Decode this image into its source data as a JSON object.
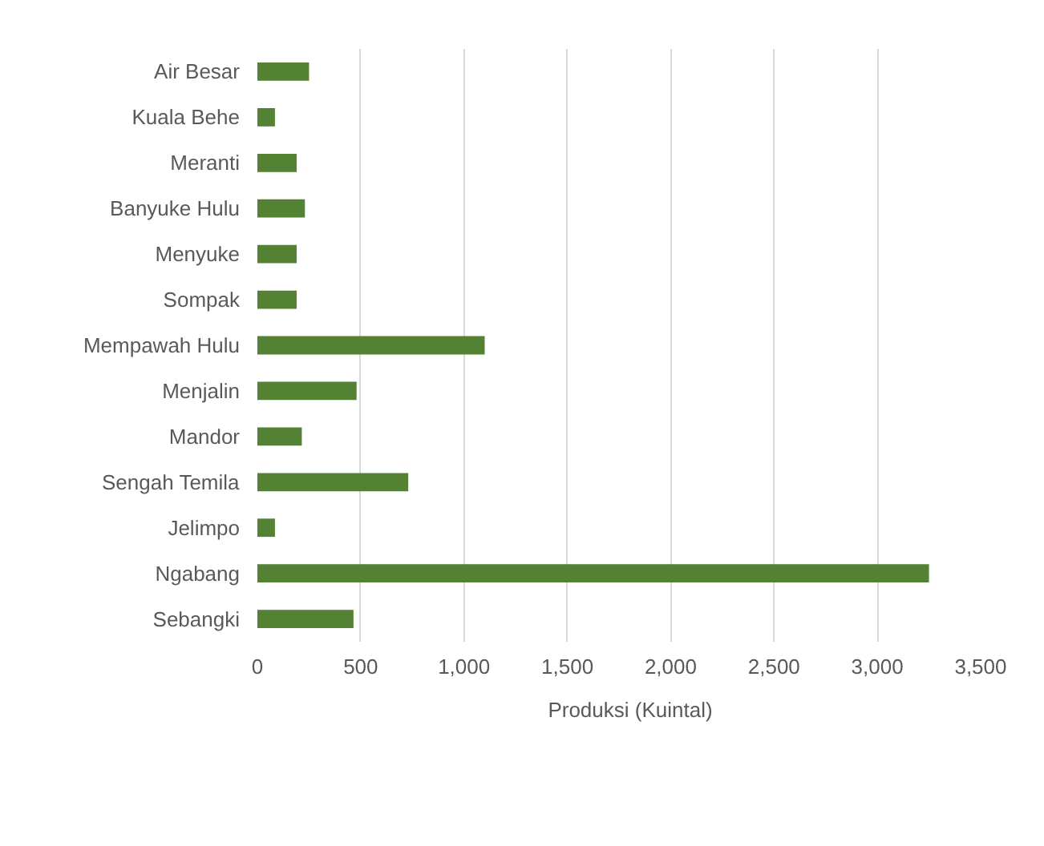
{
  "chart_data": {
    "type": "bar",
    "orientation": "horizontal",
    "categories": [
      "Air Besar",
      "Kuala Behe",
      "Meranti",
      "Banyuke Hulu",
      "Menyuke",
      "Sompak",
      "Mempawah Hulu",
      "Menjalin",
      "Mandor",
      "Sengah Temila",
      "Jelimpo",
      "Ngabang",
      "Sebangki"
    ],
    "series": [
      {
        "name": "Produksi (Kuintal)",
        "color": "#548235",
        "values": [
          250,
          85,
          190,
          230,
          190,
          190,
          1100,
          480,
          215,
          730,
          85,
          3250,
          465
        ]
      }
    ],
    "xlim": [
      0,
      3500
    ],
    "xticks": [
      0,
      {
        "value": 500,
        "label": "500"
      },
      {
        "value": 1000,
        "label": "1,000"
      },
      {
        "value": 1500,
        "label": "1,500"
      },
      {
        "value": 2000,
        "label": "2,000"
      },
      {
        "value": 2500,
        "label": "2,500"
      },
      {
        "value": 3000,
        "label": "3,000"
      },
      {
        "value": 3500,
        "label": "3,500"
      }
    ],
    "grid": "x",
    "legend": "bottom"
  }
}
